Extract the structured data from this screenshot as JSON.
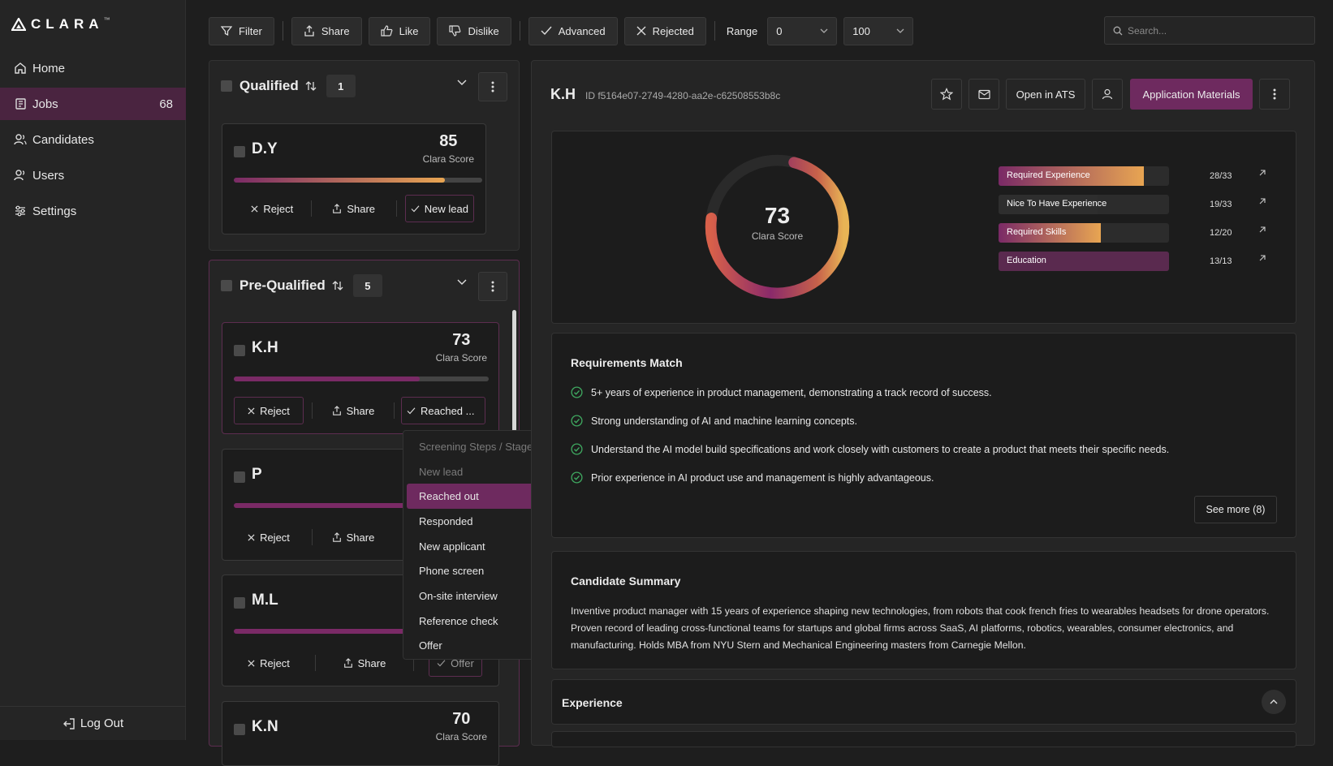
{
  "app": {
    "name": "CLARA",
    "tm": "™"
  },
  "sidebar": {
    "items": [
      {
        "label": "Home",
        "icon": "home-icon"
      },
      {
        "label": "Jobs",
        "icon": "jobs-icon",
        "count": "68",
        "active": true
      },
      {
        "label": "Candidates",
        "icon": "candidates-icon"
      },
      {
        "label": "Users",
        "icon": "users-icon"
      },
      {
        "label": "Settings",
        "icon": "settings-icon"
      }
    ],
    "logout": "Log Out"
  },
  "toolbar": {
    "filter": "Filter",
    "share": "Share",
    "like": "Like",
    "dislike": "Dislike",
    "advanced": "Advanced",
    "rejected": "Rejected",
    "range_label": "Range",
    "range_min": "0",
    "range_max": "100",
    "search_placeholder": "Search..."
  },
  "groups": {
    "qualified": {
      "title": "Qualified",
      "count": "1"
    },
    "prequalified": {
      "title": "Pre-Qualified",
      "count": "5"
    }
  },
  "cards": {
    "dy": {
      "name": "D.Y",
      "score": "85",
      "score_label": "Clara Score",
      "progress": 0.85,
      "reject": "Reject",
      "share": "Share",
      "stage": "New lead"
    },
    "kh": {
      "name": "K.H",
      "score": "73",
      "score_label": "Clara Score",
      "progress": 0.73,
      "reject": "Reject",
      "share": "Share",
      "stage": "Reached ..."
    },
    "p": {
      "name": "P",
      "reject": "Reject",
      "share": "Share"
    },
    "ml": {
      "name": "M.L",
      "reject": "Reject",
      "share": "Share",
      "stage": "Offer"
    },
    "kn": {
      "name": "K.N",
      "score": "70",
      "score_label": "Clara Score"
    }
  },
  "stage_menu": {
    "header": "Screening Steps / Stages",
    "items": [
      "New lead",
      "Reached out",
      "Responded",
      "New applicant",
      "Phone screen",
      "On-site interview",
      "Reference check",
      "Offer"
    ],
    "selected": "Reached out",
    "disabled": "New lead"
  },
  "detail": {
    "name": "K.H",
    "id": "ID f5164e07-2749-4280-aa2e-c62508553b8c",
    "open_ats": "Open in ATS",
    "app_materials": "Application Materials",
    "score": "73",
    "score_value": 0.73,
    "score_label": "Clara Score",
    "metrics": [
      {
        "label": "Required Experience",
        "value": "28/33",
        "fraction": 0.85,
        "color": "#e8a552"
      },
      {
        "label": "Nice To Have Experience",
        "value": "19/33",
        "fraction": 0.58,
        "color": "#2e2e2e"
      },
      {
        "label": "Required Skills",
        "value": "12/20",
        "fraction": 0.6,
        "color": "#e8a552"
      },
      {
        "label": "Education",
        "value": "13/13",
        "fraction": 1.0,
        "color": "#5a2a4f"
      }
    ],
    "requirements_title": "Requirements Match",
    "requirements": [
      "5+ years of experience in product management, demonstrating a track record of success.",
      "Strong understanding of AI and machine learning concepts.",
      "Understand the AI model build specifications and work closely with customers to create a product that meets their specific needs.",
      "Prior experience in AI product use and management is highly advantageous."
    ],
    "see_more": "See more (8)",
    "summary_title": "Candidate Summary",
    "summary": "Inventive product manager with 15 years of experience shaping new technologies, from robots that cook french fries to wearables headsets for drone operators. Proven record of leading cross-functional teams for startups and global firms across SaaS, AI platforms, robotics, wearables, consumer electronics, and manufacturing. Holds MBA from NYU Stern and Mechanical Engineering masters from Carnegie Mellon.",
    "experience_title": "Experience"
  },
  "colors": {
    "accent": "#6e2a5f",
    "gold": "#e8a552",
    "check": "#3fa860"
  }
}
